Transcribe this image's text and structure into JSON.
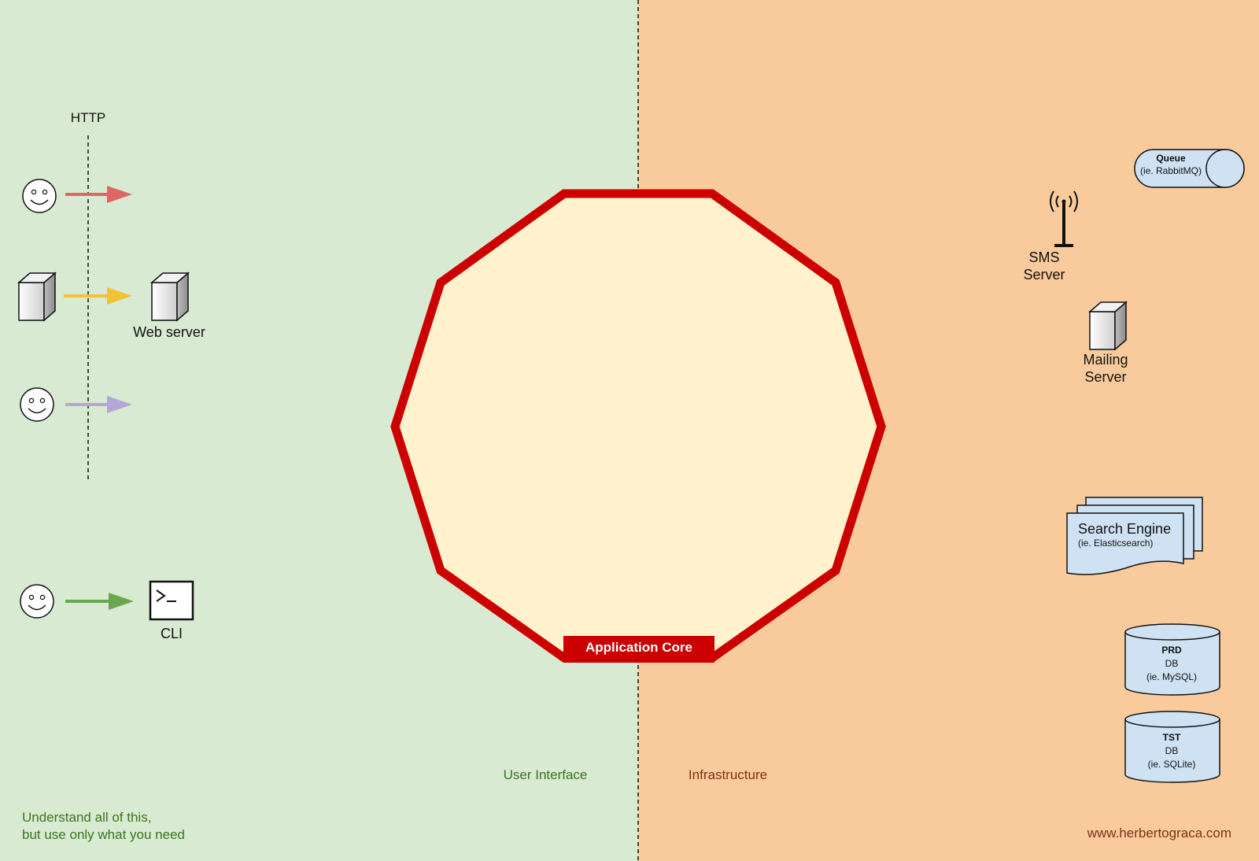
{
  "http_label": "HTTP",
  "web_server_label": "Web server",
  "cli_label": "CLI",
  "sms_server": [
    "SMS",
    "Server"
  ],
  "mailing_server": [
    "Mailing",
    "Server"
  ],
  "application_core_label": "Application Core",
  "user_interface_label": "User Interface",
  "infrastructure_label": "Infrastructure",
  "note": [
    "Understand all of this,",
    "but use only what you need"
  ],
  "website": "www.herbertograca.com",
  "queue": {
    "title": "Queue",
    "subtitle": "(ie. RabbitMQ)"
  },
  "search_engine": {
    "title": "Search Engine",
    "subtitle": "(ie. Elasticsearch)"
  },
  "prd_db": {
    "title": "PRD",
    "line1": "DB",
    "line2": "(ie. MySQL)"
  },
  "tst_db": {
    "title": "TST",
    "line1": "DB",
    "line2": "(ie. SQLite)"
  },
  "colors": {
    "user_interface_bg": "#d9ead3",
    "infrastructure_bg": "#f9cb9c",
    "core_fill": "#fff2cc",
    "core_border": "#cc0000",
    "arrow_red": "#e06666",
    "arrow_yellow": "#f1c232",
    "arrow_purple": "#b4a7d6",
    "arrow_green": "#6aa84f",
    "infra_component_fill": "#cfe2f3"
  }
}
